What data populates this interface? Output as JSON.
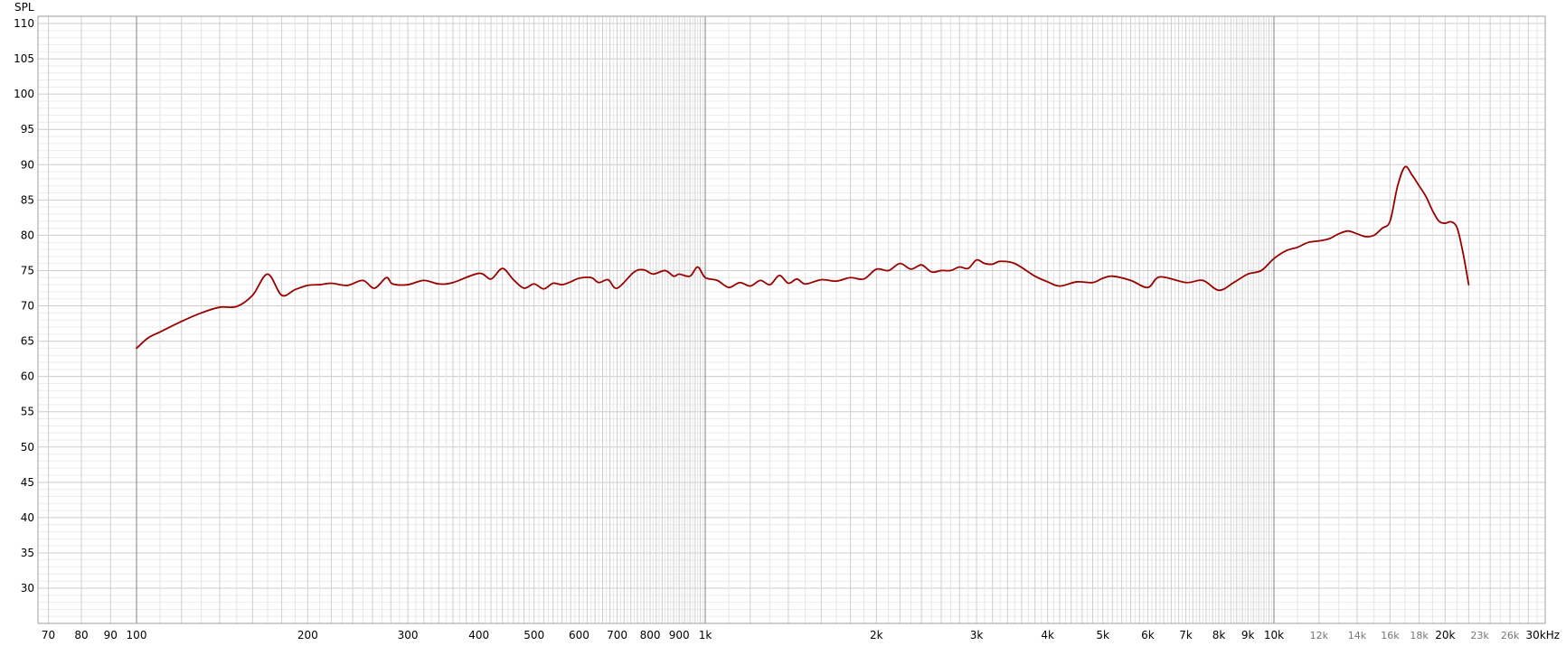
{
  "chart_data": {
    "type": "line",
    "title": "",
    "xlabel": "",
    "ylabel": "SPL",
    "x_scale": "log",
    "grid": true,
    "xlim": [
      67,
      31500
    ],
    "ylim": [
      24,
      111
    ],
    "x_ticks_major": [
      {
        "value": 70,
        "label": "70"
      },
      {
        "value": 80,
        "label": "80"
      },
      {
        "value": 90,
        "label": "90"
      },
      {
        "value": 100,
        "label": "100"
      },
      {
        "value": 200,
        "label": "200"
      },
      {
        "value": 300,
        "label": "300"
      },
      {
        "value": 400,
        "label": "400"
      },
      {
        "value": 500,
        "label": "500"
      },
      {
        "value": 600,
        "label": "600"
      },
      {
        "value": 700,
        "label": "700"
      },
      {
        "value": 800,
        "label": "800"
      },
      {
        "value": 900,
        "label": "900"
      },
      {
        "value": 1000,
        "label": "1k"
      },
      {
        "value": 2000,
        "label": "2k"
      },
      {
        "value": 3000,
        "label": "3k"
      },
      {
        "value": 4000,
        "label": "4k"
      },
      {
        "value": 5000,
        "label": "5k"
      },
      {
        "value": 6000,
        "label": "6k"
      },
      {
        "value": 7000,
        "label": "7k"
      },
      {
        "value": 8000,
        "label": "8k"
      },
      {
        "value": 9000,
        "label": "9k"
      },
      {
        "value": 10000,
        "label": "10k"
      },
      {
        "value": 20000,
        "label": "20k"
      },
      {
        "value": 30000,
        "label": "30kHz"
      }
    ],
    "x_ticks_minor": [
      {
        "value": 12000,
        "label": "12k"
      },
      {
        "value": 14000,
        "label": "14k"
      },
      {
        "value": 16000,
        "label": "16k"
      },
      {
        "value": 18000,
        "label": "18k"
      },
      {
        "value": 23000,
        "label": "23k"
      },
      {
        "value": 26000,
        "label": "26k"
      }
    ],
    "y_ticks": [
      30,
      35,
      40,
      45,
      50,
      55,
      60,
      65,
      70,
      75,
      80,
      85,
      90,
      95,
      100,
      105,
      110
    ],
    "series": [
      {
        "name": "",
        "color": "#990000",
        "x": [
          100,
          105,
          110,
          120,
          130,
          140,
          150,
          160,
          170,
          180,
          190,
          200,
          210,
          220,
          235,
          250,
          262,
          275,
          282,
          300,
          320,
          340,
          360,
          400,
          420,
          440,
          460,
          480,
          500,
          520,
          540,
          560,
          580,
          600,
          630,
          650,
          675,
          700,
          750,
          780,
          810,
          850,
          880,
          900,
          940,
          970,
          1000,
          1050,
          1100,
          1150,
          1200,
          1250,
          1300,
          1350,
          1400,
          1450,
          1500,
          1600,
          1700,
          1800,
          1900,
          2000,
          2100,
          2200,
          2300,
          2400,
          2500,
          2600,
          2700,
          2800,
          2900,
          3000,
          3100,
          3200,
          3300,
          3500,
          3800,
          4000,
          4200,
          4500,
          4800,
          5000,
          5200,
          5600,
          6000,
          6300,
          7000,
          7500,
          8000,
          8500,
          9000,
          9500,
          10000,
          10500,
          11000,
          11500,
          12000,
          12500,
          13000,
          13500,
          14000,
          14500,
          15000,
          15500,
          16000,
          16500,
          17000,
          17500,
          18000,
          18500,
          19000,
          19500,
          20000,
          20500,
          21000,
          21500,
          22000
        ],
        "y": [
          64,
          65.5,
          66.3,
          67.8,
          69,
          69.8,
          69.9,
          71.5,
          74.5,
          71.5,
          72.3,
          72.9,
          73,
          73.2,
          72.9,
          73.6,
          72.5,
          74,
          73.1,
          73,
          73.6,
          73.1,
          73.3,
          74.6,
          73.8,
          75.3,
          73.7,
          72.5,
          73.1,
          72.4,
          73.2,
          73,
          73.4,
          73.9,
          74,
          73.3,
          73.7,
          72.5,
          74.8,
          75.1,
          74.5,
          75,
          74.2,
          74.5,
          74.2,
          75.5,
          74,
          73.6,
          72.6,
          73.3,
          72.8,
          73.6,
          73,
          74.3,
          73.2,
          73.8,
          73.1,
          73.7,
          73.5,
          74,
          73.8,
          75.2,
          75,
          76,
          75.2,
          75.8,
          74.8,
          75,
          75,
          75.5,
          75.3,
          76.5,
          76,
          75.9,
          76.3,
          76,
          74.2,
          73.4,
          72.8,
          73.4,
          73.3,
          73.9,
          74.2,
          73.6,
          72.6,
          74.1,
          73.3,
          73.6,
          72.2,
          73.3,
          74.5,
          75,
          76.7,
          77.8,
          78.3,
          79,
          79.2,
          79.5,
          80.2,
          80.6,
          80.2,
          79.8,
          80,
          81,
          82,
          87,
          89.7,
          88.5,
          87,
          85.5,
          83.5,
          82,
          81.7,
          81.9,
          81,
          77.5,
          73
        ]
      }
    ]
  }
}
